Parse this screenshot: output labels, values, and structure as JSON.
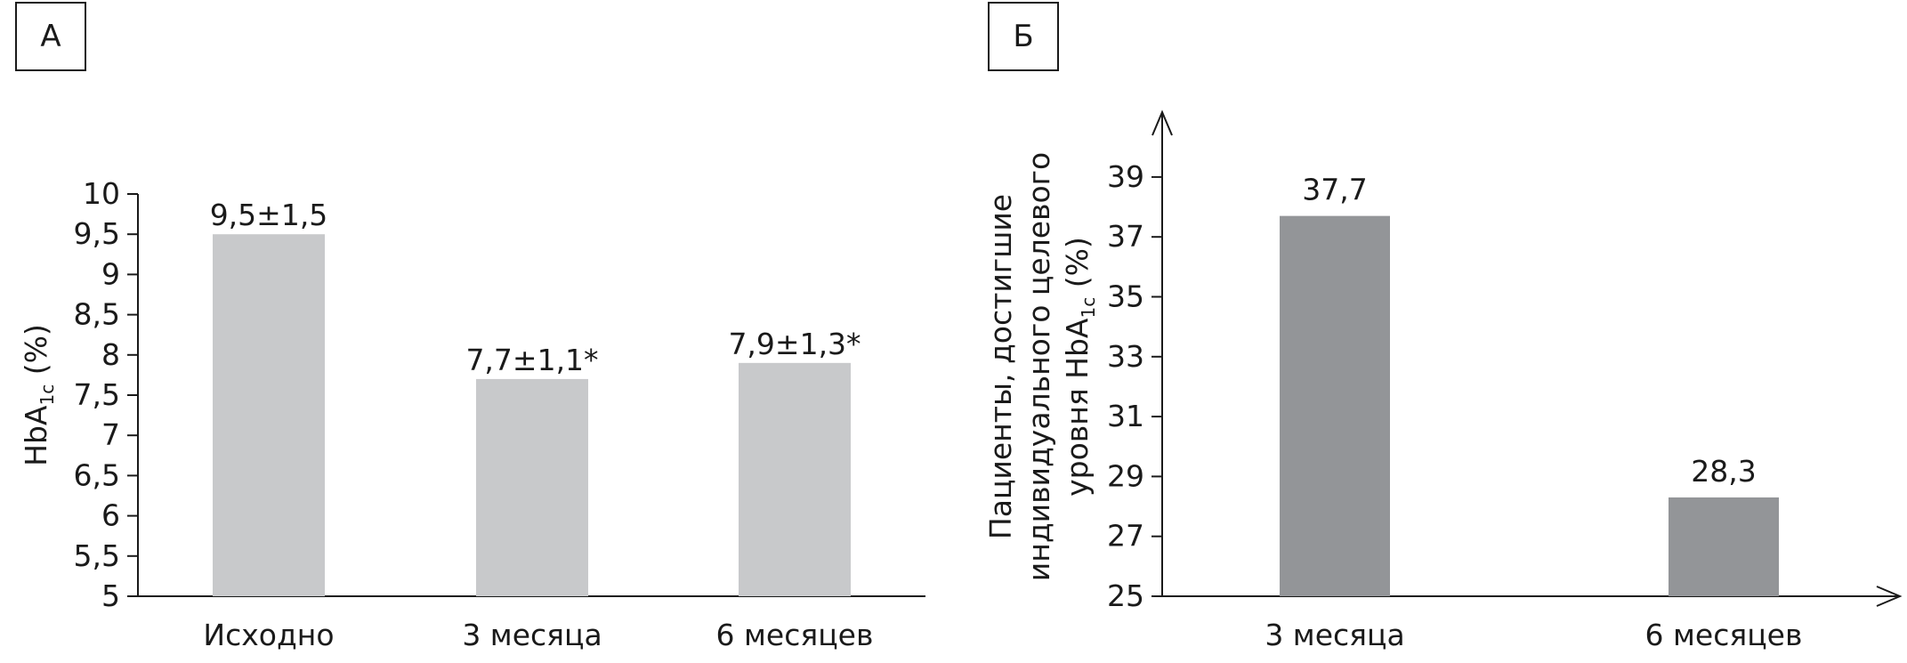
{
  "chart_data": [
    {
      "panel": "А",
      "type": "bar",
      "categories": [
        "Исходно",
        "3 месяца",
        "6 месяцев"
      ],
      "values": [
        9.5,
        7.7,
        7.9
      ],
      "data_labels": [
        "9,5±1,5",
        "7,7±1,1*",
        "7,9±1,3*"
      ],
      "ylabel_main": "HbA",
      "ylabel_sub": "1c",
      "ylabel_rest": " (%)",
      "ylim": [
        5,
        10
      ],
      "yticks": [
        5,
        5.5,
        6,
        6.5,
        7,
        7.5,
        8,
        8.5,
        9,
        9.5,
        10
      ],
      "ytick_labels": [
        "5",
        "5,5",
        "6",
        "6,5",
        "7",
        "7,5",
        "8",
        "8,5",
        "9",
        "9,5",
        "10"
      ],
      "bar_color": "#c8c9cb",
      "grid": false
    },
    {
      "panel": "Б",
      "type": "bar",
      "categories": [
        "3 месяца",
        "6 месяцев"
      ],
      "values": [
        37.7,
        28.3
      ],
      "data_labels": [
        "37,7",
        "28,3"
      ],
      "ylabel_line1": "Пациенты, достигшие",
      "ylabel_line2": "индивидуального целевого",
      "ylabel_line3_main": "уровня HbA",
      "ylabel_line3_sub": "1c",
      "ylabel_line3_rest": " (%)",
      "ylim": [
        25,
        41
      ],
      "yticks": [
        25,
        27,
        29,
        31,
        33,
        35,
        37,
        39
      ],
      "ytick_labels": [
        "25",
        "27",
        "29",
        "31",
        "33",
        "35",
        "37",
        "39"
      ],
      "bar_color": "#939598",
      "grid": false
    }
  ]
}
